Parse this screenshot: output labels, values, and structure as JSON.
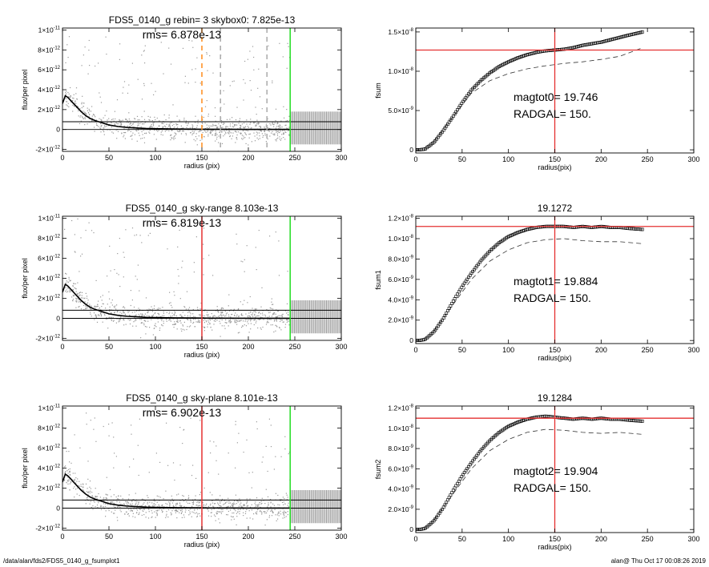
{
  "colors": {
    "scatter": "#999999",
    "profile": "#000000",
    "red_marker": "#e53030",
    "green_marker": "#22dd22",
    "orange_marker": "#ff8c1a",
    "grey_dashed": "#aaaaaa"
  },
  "footer": {
    "left": "/data/alan/fds2/FDS5_0140_g_fsumplot1",
    "right": "alan@  Thu Oct 17 00:08:26 2019"
  },
  "chart_data": [
    {
      "id": "left1",
      "type": "scatter",
      "title": "FDS5_0140_g rebin= 3    skybox0:  7.825e-13",
      "annotation": "rms= 6.878e-13",
      "xlabel": "radius (pix)",
      "ylabel": "flux/per pixel",
      "xlim": [
        0,
        300
      ],
      "ylim": [
        -2.2e-12,
        1.02e-11
      ],
      "xticks": [
        0,
        50,
        100,
        150,
        200,
        250,
        300
      ],
      "xtick_labels": [
        "0",
        "50",
        "100",
        "150",
        "200",
        "250",
        "300"
      ],
      "yticks": [
        -2e-12,
        0,
        2e-12,
        4e-12,
        6e-12,
        8e-12,
        1e-11
      ],
      "ytick_labels": [
        [
          "-2×10",
          "-12"
        ],
        [
          "0",
          ""
        ],
        [
          "2×10",
          "-12"
        ],
        [
          "4×10",
          "-12"
        ],
        [
          "6×10",
          "-12"
        ],
        [
          "8×10",
          "-12"
        ],
        [
          "1×10",
          "-11"
        ]
      ],
      "hlines": [
        0,
        7.8e-13
      ],
      "profile": {
        "r": [
          0,
          3,
          6,
          10,
          15,
          20,
          25,
          30,
          35,
          40,
          45,
          50,
          60,
          70,
          80,
          90,
          100,
          120,
          140,
          160,
          180,
          200,
          220,
          245
        ],
        "flux": [
          2.6e-12,
          3.4e-12,
          3.2e-12,
          2.8e-12,
          2.3e-12,
          1.8e-12,
          1.4e-12,
          1.1e-12,
          9e-13,
          7.5e-13,
          6e-13,
          4.5e-13,
          3e-13,
          2e-13,
          1.5e-13,
          1e-13,
          8e-14,
          5e-14,
          3e-14,
          2e-14,
          2e-14,
          1e-14,
          1e-14,
          1e-14
        ]
      },
      "vlines": [
        {
          "x": 150,
          "color": "orange",
          "style": "dashed"
        },
        {
          "x": 170,
          "color": "grey",
          "style": "dashed"
        },
        {
          "x": 220,
          "color": "grey",
          "style": "dashed"
        },
        {
          "x": 245,
          "color": "green",
          "style": "solid"
        }
      ]
    },
    {
      "id": "right1",
      "type": "scatter",
      "title": "",
      "xlabel": "radius(pix)",
      "ylabel": "fsum",
      "xlim": [
        0,
        300
      ],
      "ylim": [
        -4e-10,
        1.55e-08
      ],
      "xticks": [
        0,
        50,
        100,
        150,
        200,
        250,
        300
      ],
      "xtick_labels": [
        "0",
        "50",
        "100",
        "150",
        "200",
        "250",
        "300"
      ],
      "yticks": [
        0,
        5e-09,
        1e-08,
        1.5e-08
      ],
      "ytick_labels": [
        [
          "0",
          ""
        ],
        [
          "5.0×10",
          "-9"
        ],
        [
          "1.0×10",
          "-8"
        ],
        [
          "1.5×10",
          "-8"
        ]
      ],
      "curve": {
        "r": [
          0,
          5,
          10,
          20,
          30,
          40,
          50,
          60,
          70,
          80,
          90,
          100,
          110,
          120,
          130,
          140,
          150,
          160,
          170,
          180,
          190,
          200,
          210,
          220,
          230,
          245
        ],
        "fsum": [
          0,
          2e-11,
          1e-10,
          1e-09,
          2.5e-09,
          4.2e-09,
          6e-09,
          7.6e-09,
          8.8e-09,
          9.8e-09,
          1.06e-08,
          1.12e-08,
          1.17e-08,
          1.21e-08,
          1.24e-08,
          1.26e-08,
          1.27e-08,
          1.28e-08,
          1.3e-08,
          1.33e-08,
          1.35e-08,
          1.37e-08,
          1.4e-08,
          1.43e-08,
          1.46e-08,
          1.5e-08
        ]
      },
      "dashed": {
        "r": [
          20,
          40,
          60,
          80,
          100,
          120,
          140,
          160,
          180,
          200,
          220,
          245
        ],
        "fsum": [
          1.2e-09,
          4.2e-09,
          7.2e-09,
          8.8e-09,
          9.7e-09,
          1.03e-08,
          1.07e-08,
          1.1e-08,
          1.12e-08,
          1.15e-08,
          1.19e-08,
          1.3e-08
        ]
      },
      "hline": 1.27e-08,
      "vline": 150,
      "annotations": [
        "magtot0=  19.746",
        "RADGAL=    150."
      ]
    },
    {
      "id": "left2",
      "type": "scatter",
      "title": "FDS5_0140_g sky-range  8.103e-13",
      "annotation": "rms= 6.819e-13",
      "xlabel": "radius (pix)",
      "ylabel": "flux/per pixel",
      "xlim": [
        0,
        300
      ],
      "ylim": [
        -2.2e-12,
        1.02e-11
      ],
      "xticks": [
        0,
        50,
        100,
        150,
        200,
        250,
        300
      ],
      "xtick_labels": [
        "0",
        "50",
        "100",
        "150",
        "200",
        "250",
        "300"
      ],
      "yticks": [
        -2e-12,
        0,
        2e-12,
        4e-12,
        6e-12,
        8e-12,
        1e-11
      ],
      "ytick_labels": [
        [
          "-2×10",
          "-12"
        ],
        [
          "0",
          ""
        ],
        [
          "2×10",
          "-12"
        ],
        [
          "4×10",
          "-12"
        ],
        [
          "6×10",
          "-12"
        ],
        [
          "8×10",
          "-12"
        ],
        [
          "1×10",
          "-11"
        ]
      ],
      "hlines": [
        0,
        8.1e-13
      ],
      "profile": {
        "r": [
          0,
          3,
          6,
          10,
          15,
          20,
          25,
          30,
          35,
          40,
          45,
          50,
          60,
          70,
          80,
          90,
          100,
          120,
          140,
          160,
          180,
          200,
          220,
          245
        ],
        "flux": [
          2.6e-12,
          3.4e-12,
          3.2e-12,
          2.8e-12,
          2.3e-12,
          1.8e-12,
          1.4e-12,
          1.1e-12,
          9e-13,
          7.5e-13,
          6e-13,
          4.5e-13,
          3e-13,
          2e-13,
          1.5e-13,
          1e-13,
          8e-14,
          5e-14,
          3e-14,
          2e-14,
          2e-14,
          1e-14,
          1e-14,
          1e-14
        ]
      },
      "vlines": [
        {
          "x": 150,
          "color": "red",
          "style": "solid"
        },
        {
          "x": 245,
          "color": "green",
          "style": "solid"
        }
      ]
    },
    {
      "id": "right2",
      "type": "scatter",
      "title": "19.1272",
      "xlabel": "radius(pix)",
      "ylabel": "fsum1",
      "xlim": [
        0,
        300
      ],
      "ylim": [
        -3e-10,
        1.22e-08
      ],
      "xticks": [
        0,
        50,
        100,
        150,
        200,
        250,
        300
      ],
      "xtick_labels": [
        "0",
        "50",
        "100",
        "150",
        "200",
        "250",
        "300"
      ],
      "yticks": [
        0,
        2e-09,
        4e-09,
        6e-09,
        8e-09,
        1e-08,
        1.2e-08
      ],
      "ytick_labels": [
        [
          "0",
          ""
        ],
        [
          "2.0×10",
          "-9"
        ],
        [
          "4.0×10",
          "-9"
        ],
        [
          "6.0×10",
          "-9"
        ],
        [
          "8.0×10",
          "-9"
        ],
        [
          "1.0×10",
          "-8"
        ],
        [
          "1.2×10",
          "-8"
        ]
      ],
      "curve": {
        "r": [
          0,
          5,
          10,
          20,
          30,
          40,
          50,
          60,
          70,
          80,
          90,
          100,
          110,
          120,
          130,
          140,
          150,
          160,
          170,
          180,
          190,
          200,
          210,
          220,
          230,
          245
        ],
        "fsum": [
          0,
          2e-11,
          1e-10,
          9e-10,
          2.2e-09,
          3.8e-09,
          5.3e-09,
          6.6e-09,
          7.8e-09,
          8.8e-09,
          9.6e-09,
          1.02e-08,
          1.06e-08,
          1.09e-08,
          1.11e-08,
          1.12e-08,
          1.12e-08,
          1.12e-08,
          1.11e-08,
          1.12e-08,
          1.11e-08,
          1.12e-08,
          1.11e-08,
          1.11e-08,
          1.1e-08,
          1.09e-08
        ]
      },
      "dashed": {
        "r": [
          20,
          40,
          60,
          80,
          100,
          120,
          140,
          160,
          180,
          200,
          220,
          245
        ],
        "fsum": [
          1e-09,
          3.5e-09,
          6e-09,
          7.8e-09,
          8.9e-09,
          9.6e-09,
          9.9e-09,
          1e-08,
          9.8e-09,
          9.7e-09,
          9.7e-09,
          9.5e-09
        ]
      },
      "hline": 1.12e-08,
      "vline": 150,
      "annotations": [
        "magtot1=  19.884",
        "RADGAL=    150."
      ]
    },
    {
      "id": "left3",
      "type": "scatter",
      "title": "FDS5_0140_g sky-plane  8.101e-13",
      "annotation": "rms= 6.902e-13",
      "xlabel": "radius (pix)",
      "ylabel": "flux/per pixel",
      "xlim": [
        0,
        300
      ],
      "ylim": [
        -2.2e-12,
        1.02e-11
      ],
      "xticks": [
        0,
        50,
        100,
        150,
        200,
        250,
        300
      ],
      "xtick_labels": [
        "0",
        "50",
        "100",
        "150",
        "200",
        "250",
        "300"
      ],
      "yticks": [
        -2e-12,
        0,
        2e-12,
        4e-12,
        6e-12,
        8e-12,
        1e-11
      ],
      "ytick_labels": [
        [
          "-2×10",
          "-12"
        ],
        [
          "0",
          ""
        ],
        [
          "2×10",
          "-12"
        ],
        [
          "4×10",
          "-12"
        ],
        [
          "6×10",
          "-12"
        ],
        [
          "8×10",
          "-12"
        ],
        [
          "1×10",
          "-11"
        ]
      ],
      "hlines": [
        0,
        8.1e-13
      ],
      "profile": {
        "r": [
          0,
          3,
          6,
          10,
          15,
          20,
          25,
          30,
          35,
          40,
          45,
          50,
          60,
          70,
          80,
          90,
          100,
          120,
          140,
          160,
          180,
          200,
          220,
          245
        ],
        "flux": [
          2.6e-12,
          3.4e-12,
          3.2e-12,
          2.8e-12,
          2.3e-12,
          1.8e-12,
          1.4e-12,
          1.1e-12,
          9e-13,
          7.5e-13,
          6e-13,
          4.5e-13,
          3e-13,
          2e-13,
          1.5e-13,
          1e-13,
          8e-14,
          5e-14,
          3e-14,
          2e-14,
          2e-14,
          1e-14,
          1e-14,
          1e-14
        ]
      },
      "vlines": [
        {
          "x": 150,
          "color": "red",
          "style": "solid"
        },
        {
          "x": 245,
          "color": "green",
          "style": "solid"
        }
      ]
    },
    {
      "id": "right3",
      "type": "scatter",
      "title": "19.1284",
      "xlabel": "radius(pix)",
      "ylabel": "fsum2",
      "xlim": [
        0,
        300
      ],
      "ylim": [
        -3e-10,
        1.22e-08
      ],
      "xticks": [
        0,
        50,
        100,
        150,
        200,
        250,
        300
      ],
      "xtick_labels": [
        "0",
        "50",
        "100",
        "150",
        "200",
        "250",
        "300"
      ],
      "yticks": [
        0,
        2e-09,
        4e-09,
        6e-09,
        8e-09,
        1e-08,
        1.2e-08
      ],
      "ytick_labels": [
        [
          "0",
          ""
        ],
        [
          "2.0×10",
          "-9"
        ],
        [
          "4.0×10",
          "-9"
        ],
        [
          "6.0×10",
          "-9"
        ],
        [
          "8.0×10",
          "-9"
        ],
        [
          "1.0×10",
          "-8"
        ],
        [
          "1.2×10",
          "-8"
        ]
      ],
      "curve": {
        "r": [
          0,
          5,
          10,
          20,
          30,
          40,
          50,
          60,
          70,
          80,
          90,
          100,
          110,
          120,
          130,
          140,
          150,
          160,
          170,
          180,
          190,
          200,
          210,
          220,
          230,
          245
        ],
        "fsum": [
          0,
          2e-11,
          1e-10,
          9e-10,
          2.2e-09,
          3.8e-09,
          5.3e-09,
          6.6e-09,
          7.8e-09,
          8.8e-09,
          9.6e-09,
          1.02e-08,
          1.06e-08,
          1.09e-08,
          1.11e-08,
          1.12e-08,
          1.11e-08,
          1.1e-08,
          1.09e-08,
          1.1e-08,
          1.09e-08,
          1.1e-08,
          1.09e-08,
          1.09e-08,
          1.08e-08,
          1.07e-08
        ]
      },
      "dashed": {
        "r": [
          20,
          40,
          60,
          80,
          100,
          120,
          140,
          160,
          180,
          200,
          220,
          245
        ],
        "fsum": [
          1e-09,
          3.5e-09,
          6e-09,
          7.8e-09,
          8.9e-09,
          9.6e-09,
          9.9e-09,
          9.8e-09,
          9.6e-09,
          9.5e-09,
          9.6e-09,
          9.4e-09
        ]
      },
      "hline": 1.1e-08,
      "vline": 150,
      "annotations": [
        "magtot2=  19.904",
        "RADGAL=    150."
      ]
    }
  ]
}
